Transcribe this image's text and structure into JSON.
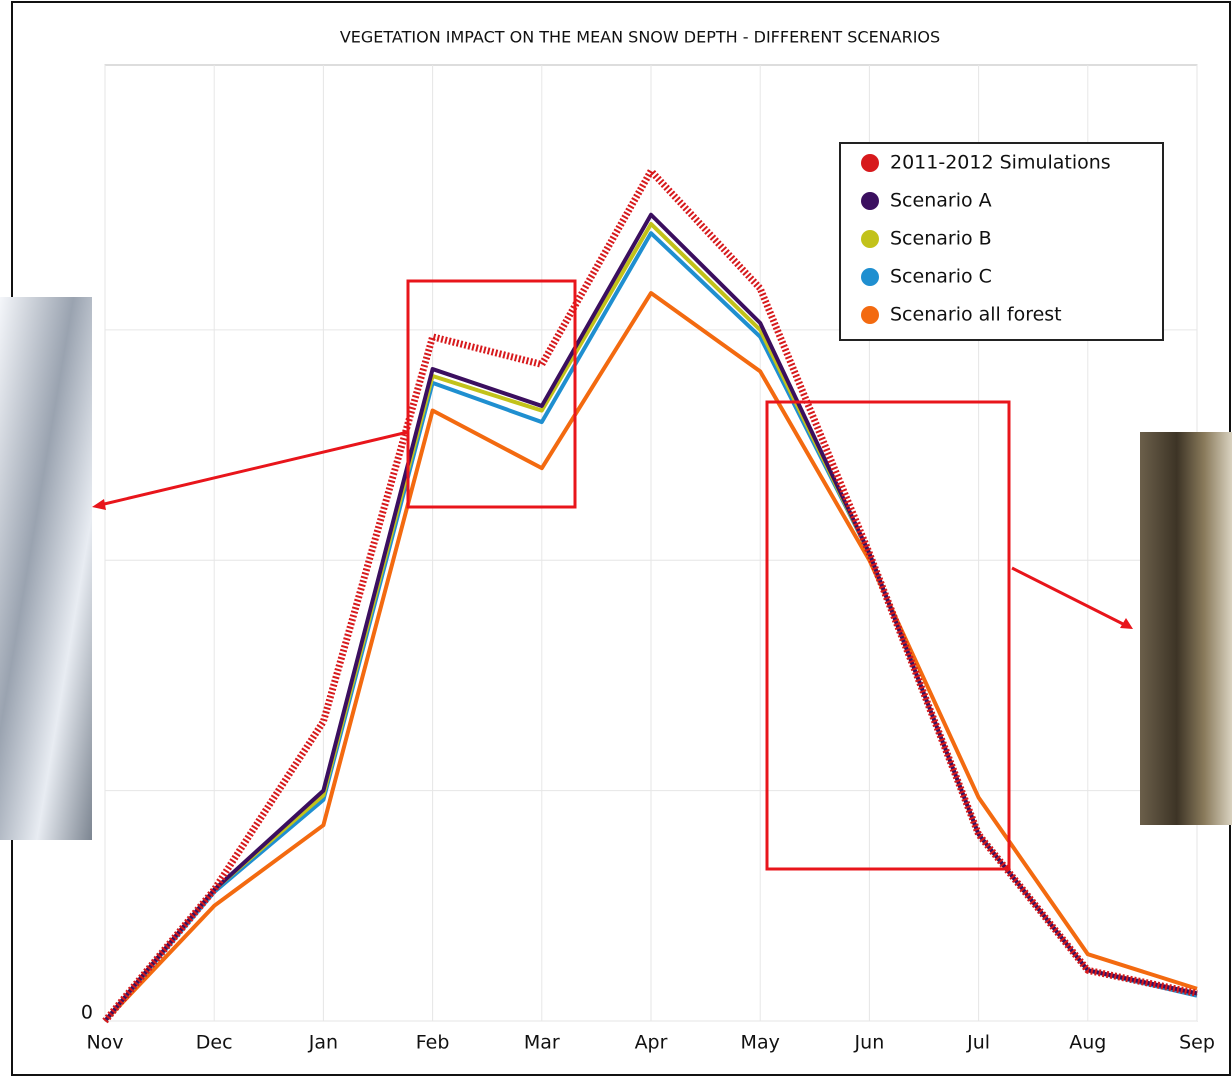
{
  "chart_data": {
    "type": "line",
    "title": "VEGETATION IMPACT ON THE MEAN SNOW DEPTH - DIFFERENT SCENARIOS",
    "categories": [
      "Nov",
      "Dec",
      "Jan",
      "Feb",
      "Mar",
      "Apr",
      "May",
      "Jun",
      "Jul",
      "Aug",
      "Sep"
    ],
    "series": [
      {
        "name": "2011-2012 Simulations",
        "color": "#d7191c",
        "values": [
          0,
          0.57,
          1.3,
          2.97,
          2.85,
          3.69,
          3.18,
          2.03,
          0.81,
          0.22,
          0.12
        ]
      },
      {
        "name": "Scenario A",
        "color": "#3b0f5f",
        "values": [
          0,
          0.57,
          1.0,
          2.83,
          2.67,
          3.5,
          3.03,
          2.03,
          0.81,
          0.22,
          0.12
        ]
      },
      {
        "name": "Scenario B",
        "color": "#c2c21a",
        "values": [
          0,
          0.57,
          0.98,
          2.8,
          2.65,
          3.46,
          3.0,
          2.03,
          0.81,
          0.22,
          0.12
        ]
      },
      {
        "name": "Scenario C",
        "color": "#1f8fd0",
        "values": [
          0,
          0.56,
          0.96,
          2.77,
          2.6,
          3.42,
          2.97,
          2.03,
          0.81,
          0.22,
          0.11
        ]
      },
      {
        "name": "Scenario all forest",
        "color": "#f36a10",
        "values": [
          0,
          0.5,
          0.85,
          2.65,
          2.4,
          3.16,
          2.82,
          2.0,
          0.97,
          0.29,
          0.14
        ]
      }
    ],
    "ylim": [
      0,
      4.15
    ],
    "yticks": [
      0
    ],
    "ygrid": [
      0,
      1,
      2,
      3
    ],
    "grid": true,
    "legend": "upper right"
  }
}
